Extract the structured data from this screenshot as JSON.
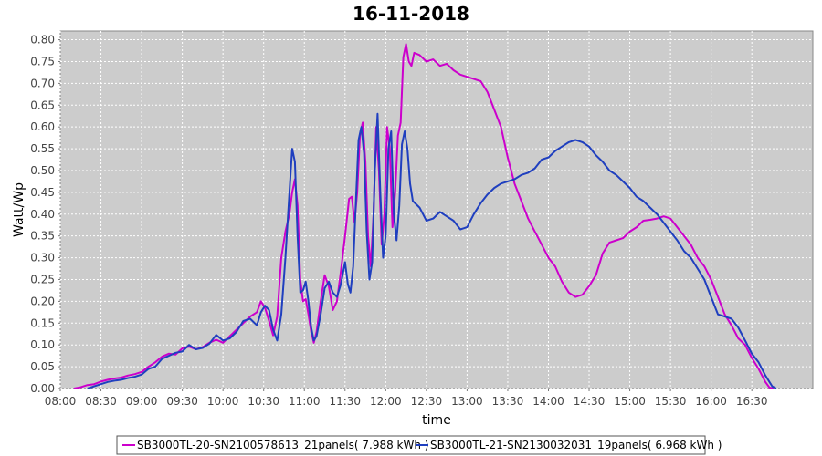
{
  "chart_data": {
    "type": "line",
    "title": "16-11-2018",
    "xlabel": "time",
    "ylabel": "Watt/Wp",
    "x_ticks": [
      "08:00",
      "08:30",
      "09:00",
      "09:30",
      "10:00",
      "10:30",
      "11:00",
      "11:30",
      "12:00",
      "12:30",
      "13:00",
      "13:30",
      "14:00",
      "14:30",
      "15:00",
      "15:30",
      "16:00",
      "16:30"
    ],
    "xlim": [
      "08:00",
      "17:15"
    ],
    "ylim": [
      0,
      0.82
    ],
    "y_ticks": [
      "0.00",
      "0.05",
      "0.10",
      "0.15",
      "0.20",
      "0.25",
      "0.30",
      "0.35",
      "0.40",
      "0.45",
      "0.50",
      "0.55",
      "0.60",
      "0.65",
      "0.70",
      "0.75",
      "0.80"
    ],
    "grid": true,
    "legend_position": "bottom",
    "plot_background": "#cccccc",
    "series": [
      {
        "name": "SB3000TL-20-SN2100578613_21panels( 7.988 kWh )",
        "color": "#cc00cc",
        "points": [
          [
            "08:10",
            0.0
          ],
          [
            "08:15",
            0.003
          ],
          [
            "08:20",
            0.008
          ],
          [
            "08:25",
            0.01
          ],
          [
            "08:30",
            0.016
          ],
          [
            "08:35",
            0.02
          ],
          [
            "08:40",
            0.023
          ],
          [
            "08:45",
            0.025
          ],
          [
            "08:50",
            0.03
          ],
          [
            "08:55",
            0.033
          ],
          [
            "09:00",
            0.038
          ],
          [
            "09:05",
            0.05
          ],
          [
            "09:10",
            0.06
          ],
          [
            "09:15",
            0.073
          ],
          [
            "09:20",
            0.08
          ],
          [
            "09:25",
            0.078
          ],
          [
            "09:30",
            0.092
          ],
          [
            "09:35",
            0.096
          ],
          [
            "09:40",
            0.09
          ],
          [
            "09:45",
            0.095
          ],
          [
            "09:50",
            0.105
          ],
          [
            "09:55",
            0.112
          ],
          [
            "10:00",
            0.105
          ],
          [
            "10:05",
            0.12
          ],
          [
            "10:10",
            0.135
          ],
          [
            "10:15",
            0.15
          ],
          [
            "10:20",
            0.165
          ],
          [
            "10:25",
            0.175
          ],
          [
            "10:28",
            0.2
          ],
          [
            "10:31",
            0.185
          ],
          [
            "10:34",
            0.155
          ],
          [
            "10:37",
            0.122
          ],
          [
            "10:40",
            0.165
          ],
          [
            "10:43",
            0.3
          ],
          [
            "10:46",
            0.36
          ],
          [
            "10:49",
            0.4
          ],
          [
            "10:51",
            0.45
          ],
          [
            "10:53",
            0.48
          ],
          [
            "10:55",
            0.42
          ],
          [
            "10:57",
            0.25
          ],
          [
            "10:59",
            0.2
          ],
          [
            "11:01",
            0.205
          ],
          [
            "11:03",
            0.17
          ],
          [
            "11:05",
            0.13
          ],
          [
            "11:07",
            0.105
          ],
          [
            "11:09",
            0.13
          ],
          [
            "11:12",
            0.2
          ],
          [
            "11:15",
            0.26
          ],
          [
            "11:18",
            0.235
          ],
          [
            "11:21",
            0.18
          ],
          [
            "11:24",
            0.2
          ],
          [
            "11:27",
            0.27
          ],
          [
            "11:30",
            0.35
          ],
          [
            "11:33",
            0.435
          ],
          [
            "11:35",
            0.44
          ],
          [
            "11:37",
            0.38
          ],
          [
            "11:39",
            0.45
          ],
          [
            "11:41",
            0.58
          ],
          [
            "11:43",
            0.61
          ],
          [
            "11:45",
            0.52
          ],
          [
            "11:47",
            0.35
          ],
          [
            "11:49",
            0.28
          ],
          [
            "11:51",
            0.4
          ],
          [
            "11:53",
            0.6
          ],
          [
            "11:55",
            0.5
          ],
          [
            "11:57",
            0.33
          ],
          [
            "11:59",
            0.4
          ],
          [
            "12:01",
            0.6
          ],
          [
            "12:03",
            0.55
          ],
          [
            "12:05",
            0.37
          ],
          [
            "12:07",
            0.45
          ],
          [
            "12:09",
            0.58
          ],
          [
            "12:11",
            0.61
          ],
          [
            "12:13",
            0.76
          ],
          [
            "12:15",
            0.79
          ],
          [
            "12:17",
            0.75
          ],
          [
            "12:19",
            0.74
          ],
          [
            "12:21",
            0.77
          ],
          [
            "12:25",
            0.765
          ],
          [
            "12:30",
            0.75
          ],
          [
            "12:35",
            0.755
          ],
          [
            "12:40",
            0.74
          ],
          [
            "12:45",
            0.745
          ],
          [
            "12:50",
            0.73
          ],
          [
            "12:55",
            0.72
          ],
          [
            "13:00",
            0.715
          ],
          [
            "13:05",
            0.71
          ],
          [
            "13:10",
            0.705
          ],
          [
            "13:15",
            0.68
          ],
          [
            "13:20",
            0.64
          ],
          [
            "13:25",
            0.6
          ],
          [
            "13:30",
            0.53
          ],
          [
            "13:35",
            0.47
          ],
          [
            "13:40",
            0.43
          ],
          [
            "13:45",
            0.39
          ],
          [
            "13:50",
            0.36
          ],
          [
            "13:55",
            0.33
          ],
          [
            "14:00",
            0.3
          ],
          [
            "14:05",
            0.28
          ],
          [
            "14:10",
            0.245
          ],
          [
            "14:15",
            0.22
          ],
          [
            "14:20",
            0.21
          ],
          [
            "14:25",
            0.215
          ],
          [
            "14:30",
            0.235
          ],
          [
            "14:35",
            0.26
          ],
          [
            "14:40",
            0.31
          ],
          [
            "14:45",
            0.335
          ],
          [
            "14:50",
            0.34
          ],
          [
            "14:55",
            0.345
          ],
          [
            "15:00",
            0.36
          ],
          [
            "15:05",
            0.37
          ],
          [
            "15:10",
            0.385
          ],
          [
            "15:15",
            0.387
          ],
          [
            "15:20",
            0.39
          ],
          [
            "15:25",
            0.395
          ],
          [
            "15:30",
            0.39
          ],
          [
            "15:35",
            0.37
          ],
          [
            "15:40",
            0.35
          ],
          [
            "15:45",
            0.33
          ],
          [
            "15:50",
            0.3
          ],
          [
            "15:55",
            0.28
          ],
          [
            "16:00",
            0.25
          ],
          [
            "16:05",
            0.21
          ],
          [
            "16:10",
            0.17
          ],
          [
            "16:15",
            0.145
          ],
          [
            "16:20",
            0.115
          ],
          [
            "16:25",
            0.1
          ],
          [
            "16:30",
            0.07
          ],
          [
            "16:35",
            0.045
          ],
          [
            "16:40",
            0.015
          ],
          [
            "16:43",
            0.002
          ],
          [
            "16:46",
            0.0
          ]
        ]
      },
      {
        "name": "SB3000TL-21-SN2130032031_19panels( 6.968 kWh )",
        "color": "#1f3fbf",
        "points": [
          [
            "08:20",
            0.0
          ],
          [
            "08:25",
            0.005
          ],
          [
            "08:30",
            0.01
          ],
          [
            "08:35",
            0.015
          ],
          [
            "08:40",
            0.018
          ],
          [
            "08:45",
            0.02
          ],
          [
            "08:50",
            0.024
          ],
          [
            "08:55",
            0.027
          ],
          [
            "09:00",
            0.032
          ],
          [
            "09:05",
            0.045
          ],
          [
            "09:10",
            0.05
          ],
          [
            "09:15",
            0.068
          ],
          [
            "09:20",
            0.075
          ],
          [
            "09:25",
            0.082
          ],
          [
            "09:30",
            0.085
          ],
          [
            "09:35",
            0.1
          ],
          [
            "09:40",
            0.09
          ],
          [
            "09:45",
            0.093
          ],
          [
            "09:50",
            0.103
          ],
          [
            "09:55",
            0.123
          ],
          [
            "10:00",
            0.11
          ],
          [
            "10:05",
            0.115
          ],
          [
            "10:10",
            0.13
          ],
          [
            "10:15",
            0.155
          ],
          [
            "10:20",
            0.16
          ],
          [
            "10:25",
            0.145
          ],
          [
            "10:28",
            0.175
          ],
          [
            "10:31",
            0.19
          ],
          [
            "10:34",
            0.18
          ],
          [
            "10:37",
            0.135
          ],
          [
            "10:40",
            0.11
          ],
          [
            "10:43",
            0.17
          ],
          [
            "10:46",
            0.3
          ],
          [
            "10:49",
            0.45
          ],
          [
            "10:51",
            0.55
          ],
          [
            "10:53",
            0.52
          ],
          [
            "10:55",
            0.35
          ],
          [
            "10:57",
            0.22
          ],
          [
            "10:59",
            0.225
          ],
          [
            "11:01",
            0.245
          ],
          [
            "11:03",
            0.2
          ],
          [
            "11:05",
            0.14
          ],
          [
            "11:07",
            0.11
          ],
          [
            "11:09",
            0.12
          ],
          [
            "11:12",
            0.17
          ],
          [
            "11:15",
            0.23
          ],
          [
            "11:18",
            0.245
          ],
          [
            "11:21",
            0.22
          ],
          [
            "11:24",
            0.21
          ],
          [
            "11:27",
            0.24
          ],
          [
            "11:30",
            0.29
          ],
          [
            "11:32",
            0.24
          ],
          [
            "11:34",
            0.22
          ],
          [
            "11:36",
            0.28
          ],
          [
            "11:38",
            0.43
          ],
          [
            "11:40",
            0.57
          ],
          [
            "11:42",
            0.6
          ],
          [
            "11:44",
            0.54
          ],
          [
            "11:46",
            0.36
          ],
          [
            "11:48",
            0.25
          ],
          [
            "11:50",
            0.29
          ],
          [
            "11:52",
            0.5
          ],
          [
            "11:54",
            0.63
          ],
          [
            "11:56",
            0.45
          ],
          [
            "11:58",
            0.3
          ],
          [
            "12:00",
            0.35
          ],
          [
            "12:02",
            0.55
          ],
          [
            "12:04",
            0.59
          ],
          [
            "12:06",
            0.4
          ],
          [
            "12:08",
            0.34
          ],
          [
            "12:10",
            0.42
          ],
          [
            "12:12",
            0.56
          ],
          [
            "12:14",
            0.59
          ],
          [
            "12:16",
            0.55
          ],
          [
            "12:18",
            0.47
          ],
          [
            "12:20",
            0.43
          ],
          [
            "12:25",
            0.415
          ],
          [
            "12:30",
            0.385
          ],
          [
            "12:35",
            0.39
          ],
          [
            "12:40",
            0.405
          ],
          [
            "12:45",
            0.395
          ],
          [
            "12:50",
            0.385
          ],
          [
            "12:55",
            0.365
          ],
          [
            "13:00",
            0.37
          ],
          [
            "13:05",
            0.4
          ],
          [
            "13:10",
            0.425
          ],
          [
            "13:15",
            0.445
          ],
          [
            "13:20",
            0.46
          ],
          [
            "13:25",
            0.47
          ],
          [
            "13:30",
            0.475
          ],
          [
            "13:35",
            0.48
          ],
          [
            "13:40",
            0.49
          ],
          [
            "13:45",
            0.495
          ],
          [
            "13:50",
            0.505
          ],
          [
            "13:55",
            0.525
          ],
          [
            "14:00",
            0.53
          ],
          [
            "14:05",
            0.545
          ],
          [
            "14:10",
            0.555
          ],
          [
            "14:15",
            0.565
          ],
          [
            "14:20",
            0.57
          ],
          [
            "14:25",
            0.565
          ],
          [
            "14:30",
            0.555
          ],
          [
            "14:35",
            0.535
          ],
          [
            "14:40",
            0.52
          ],
          [
            "14:45",
            0.5
          ],
          [
            "14:50",
            0.49
          ],
          [
            "14:55",
            0.475
          ],
          [
            "15:00",
            0.46
          ],
          [
            "15:05",
            0.44
          ],
          [
            "15:10",
            0.43
          ],
          [
            "15:15",
            0.415
          ],
          [
            "15:20",
            0.4
          ],
          [
            "15:25",
            0.38
          ],
          [
            "15:30",
            0.36
          ],
          [
            "15:35",
            0.34
          ],
          [
            "15:40",
            0.315
          ],
          [
            "15:45",
            0.3
          ],
          [
            "15:50",
            0.275
          ],
          [
            "15:55",
            0.25
          ],
          [
            "16:00",
            0.21
          ],
          [
            "16:05",
            0.17
          ],
          [
            "16:10",
            0.165
          ],
          [
            "16:15",
            0.16
          ],
          [
            "16:20",
            0.14
          ],
          [
            "16:25",
            0.11
          ],
          [
            "16:30",
            0.08
          ],
          [
            "16:35",
            0.06
          ],
          [
            "16:40",
            0.03
          ],
          [
            "16:45",
            0.005
          ],
          [
            "16:48",
            0.0
          ]
        ]
      }
    ]
  }
}
